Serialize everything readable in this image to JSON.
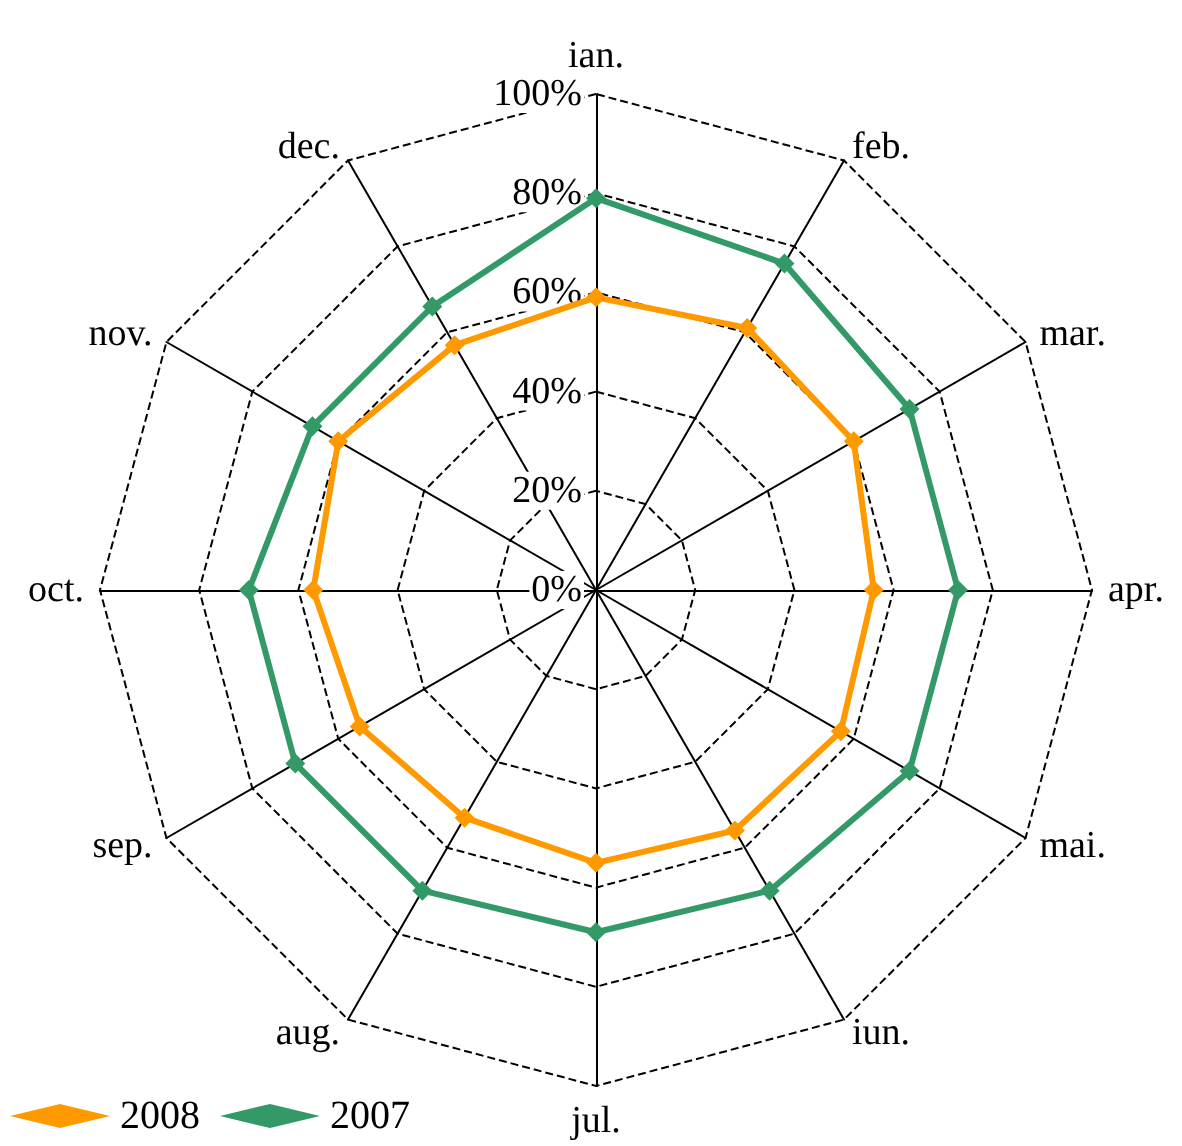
{
  "chart_data": {
    "type": "radar",
    "categories": [
      "ian.",
      "feb.",
      "mar.",
      "apr.",
      "mai.",
      "iun.",
      "jul.",
      "aug.",
      "sep.",
      "oct.",
      "nov.",
      "dec."
    ],
    "series": [
      {
        "name": "2008",
        "color": "#ff9900",
        "values": [
          59,
          61,
          60,
          56,
          57,
          56,
          55,
          53,
          55,
          57,
          60,
          57
        ]
      },
      {
        "name": "2007",
        "color": "#339966",
        "values": [
          79,
          76,
          73,
          73,
          73,
          70,
          69,
          70,
          70,
          70,
          66,
          66
        ]
      }
    ],
    "ylim": [
      0,
      100
    ],
    "yticks": [
      {
        "value": 0,
        "label": "0%"
      },
      {
        "value": 20,
        "label": "20%"
      },
      {
        "value": 40,
        "label": "40%"
      },
      {
        "value": 60,
        "label": "60%"
      },
      {
        "value": 80,
        "label": "80%"
      },
      {
        "value": 100,
        "label": "100%"
      }
    ],
    "grid": true,
    "legend": "bottom left",
    "marker": "diamond",
    "line_style": "solid"
  }
}
